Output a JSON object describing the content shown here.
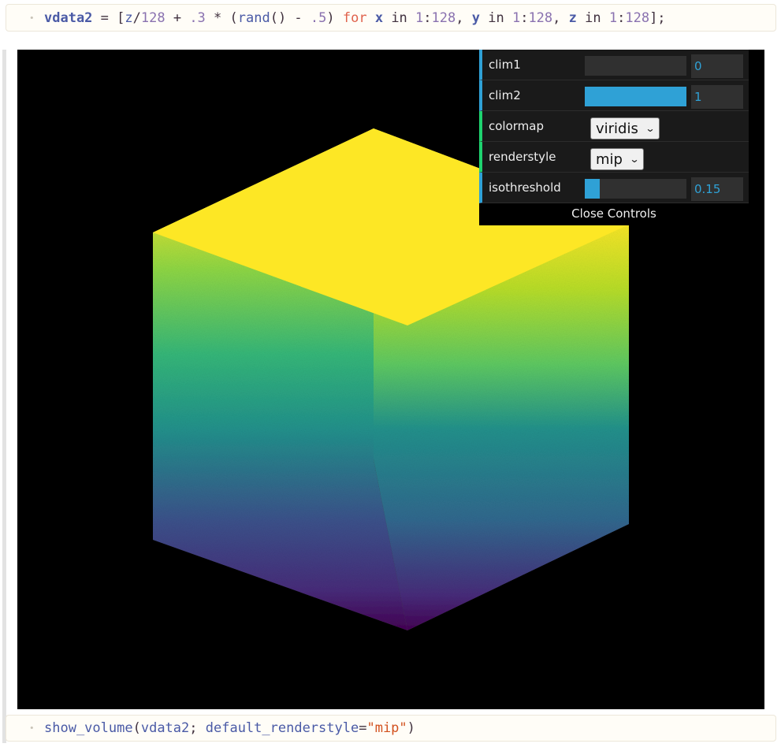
{
  "cells": {
    "top_code": {
      "bullet": "•",
      "tokens": [
        {
          "t": "vdata2",
          "c": "tk-var"
        },
        {
          "t": " = [",
          "c": "tk-op"
        },
        {
          "t": "z",
          "c": "tk-id"
        },
        {
          "t": "/",
          "c": "tk-op"
        },
        {
          "t": "128",
          "c": "tk-num"
        },
        {
          "t": " + ",
          "c": "tk-op"
        },
        {
          "t": ".3",
          "c": "tk-num"
        },
        {
          "t": " * (",
          "c": "tk-op"
        },
        {
          "t": "rand",
          "c": "tk-fn"
        },
        {
          "t": "() - ",
          "c": "tk-op"
        },
        {
          "t": ".5",
          "c": "tk-num"
        },
        {
          "t": ") ",
          "c": "tk-op"
        },
        {
          "t": "for",
          "c": "tk-kw"
        },
        {
          "t": " ",
          "c": "tk-op"
        },
        {
          "t": "x",
          "c": "tk-var"
        },
        {
          "t": " in ",
          "c": "tk-op"
        },
        {
          "t": "1",
          "c": "tk-num"
        },
        {
          "t": ":",
          "c": "tk-op"
        },
        {
          "t": "128",
          "c": "tk-num"
        },
        {
          "t": ", ",
          "c": "tk-op"
        },
        {
          "t": "y",
          "c": "tk-var"
        },
        {
          "t": " in ",
          "c": "tk-op"
        },
        {
          "t": "1",
          "c": "tk-num"
        },
        {
          "t": ":",
          "c": "tk-op"
        },
        {
          "t": "128",
          "c": "tk-num"
        },
        {
          "t": ", ",
          "c": "tk-op"
        },
        {
          "t": "z",
          "c": "tk-var"
        },
        {
          "t": " in ",
          "c": "tk-op"
        },
        {
          "t": "1",
          "c": "tk-num"
        },
        {
          "t": ":",
          "c": "tk-op"
        },
        {
          "t": "128",
          "c": "tk-num"
        },
        {
          "t": "];",
          "c": "tk-op"
        }
      ]
    },
    "bottom_code": {
      "bullet": "•",
      "tokens": [
        {
          "t": "show_volume",
          "c": "tk-fn"
        },
        {
          "t": "(",
          "c": "tk-op"
        },
        {
          "t": "vdata2",
          "c": "tk-id"
        },
        {
          "t": "; ",
          "c": "tk-op"
        },
        {
          "t": "default_renderstyle",
          "c": "tk-id"
        },
        {
          "t": "=",
          "c": "tk-op"
        },
        {
          "t": "\"mip\"",
          "c": "tk-str"
        },
        {
          "t": ")",
          "c": "tk-op"
        }
      ]
    }
  },
  "controls": {
    "clim1": {
      "label": "clim1",
      "value": "0",
      "fill": 0.0
    },
    "clim2": {
      "label": "clim2",
      "value": "1",
      "fill": 1.0
    },
    "colormap": {
      "label": "colormap",
      "selected": "viridis"
    },
    "renderstyle": {
      "label": "renderstyle",
      "selected": "mip"
    },
    "isothreshold": {
      "label": "isothreshold",
      "value": "0.15",
      "fill": 0.15
    },
    "close_label": "Close Controls"
  },
  "colors": {
    "viewer_bg": "#000000",
    "slider_fill": "#2fa1d6",
    "number_row_accent": "#2fa1d6",
    "option_row_accent": "#1ed36f",
    "viridis": [
      "#440154",
      "#3b528b",
      "#21918c",
      "#5ec962",
      "#fde725"
    ]
  }
}
